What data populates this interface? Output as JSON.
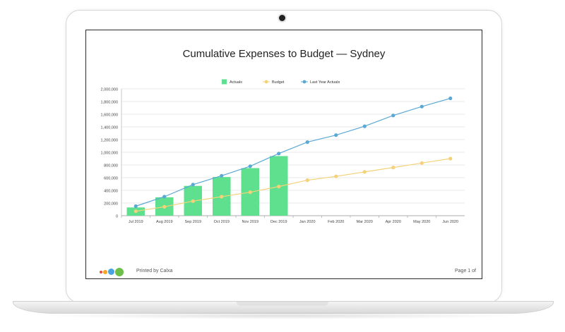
{
  "report": {
    "printed_by": "Printed by Calxa",
    "page_label": "Page 1 of"
  },
  "logo_colors": [
    "#e74c3c",
    "#f5a623",
    "#4aa3df",
    "#6cc04a"
  ],
  "chart_data": {
    "type": "bar",
    "title": "Cumulative Expenses to Budget — Sydney",
    "legend_position": "top-center",
    "grid": true,
    "categories": [
      "Jul 2019",
      "Aug 2019",
      "Sep 2019",
      "Oct 2019",
      "Nov 2019",
      "Dec 2019",
      "Jan 2020",
      "Feb 2020",
      "Mar 2020",
      "Apr 2020",
      "May 2020",
      "Jun 2020"
    ],
    "ylim": [
      0,
      2000000
    ],
    "yticks": [
      0,
      200000,
      400000,
      600000,
      800000,
      1000000,
      1200000,
      1400000,
      1600000,
      1800000,
      2000000
    ],
    "ytick_labels": [
      "0",
      "200,000",
      "400,000",
      "600,000",
      "800,000",
      "1,000,000",
      "1,200,000",
      "1,400,000",
      "1,600,000",
      "1,800,000",
      "2,000,000"
    ],
    "series": [
      {
        "name": "Actuals",
        "type": "bar",
        "color": "#5ee08e",
        "values": [
          130000,
          290000,
          470000,
          610000,
          750000,
          940000,
          null,
          null,
          null,
          null,
          null,
          null
        ]
      },
      {
        "name": "Budget",
        "type": "line",
        "color": "#f5d27a",
        "values": [
          70000,
          140000,
          230000,
          300000,
          370000,
          460000,
          560000,
          620000,
          690000,
          760000,
          830000,
          900000
        ]
      },
      {
        "name": "Last Year Actuals",
        "type": "line",
        "color": "#5ba8d4",
        "values": [
          150000,
          300000,
          490000,
          630000,
          780000,
          980000,
          1160000,
          1270000,
          1410000,
          1580000,
          1720000,
          1850000
        ]
      }
    ]
  }
}
